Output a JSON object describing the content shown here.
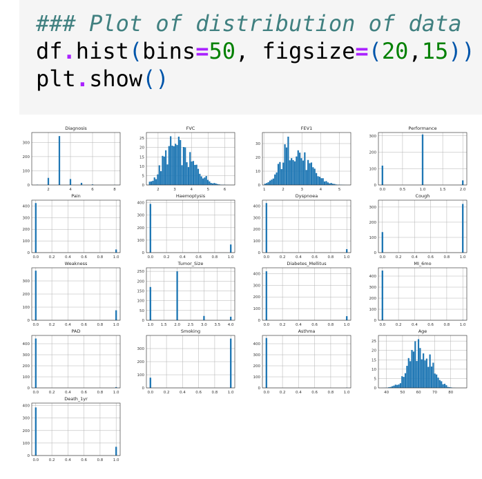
{
  "code": {
    "comment": "### Plot of distribution of data",
    "line2": {
      "obj": "df",
      "dot": ".",
      "fn": "hist",
      "open": "(",
      "arg1": "bins",
      "eq1": "=",
      "val1": "50",
      "comma1": ", ",
      "arg2": "figsize",
      "eq2": "=",
      "open2": "(",
      "val2": "20",
      "comma2": ",",
      "val3": "15",
      "close": "))"
    },
    "line3": {
      "obj": "plt",
      "dot": ".",
      "fn": "show",
      "paren": "()"
    }
  },
  "chart_data": [
    {
      "type": "bar",
      "title": "Diagnosis",
      "xticks": [
        "2",
        "4",
        "6",
        "8"
      ],
      "yticks": [
        "0",
        "100",
        "200",
        "300"
      ],
      "xlim": [
        0.5,
        8.5
      ],
      "ylim": [
        0,
        370
      ],
      "bars": [
        [
          1,
          2
        ],
        [
          2,
          50
        ],
        [
          3,
          345
        ],
        [
          4,
          42
        ],
        [
          5,
          15
        ],
        [
          6,
          4
        ],
        [
          8,
          1
        ]
      ],
      "barw": 0.14
    },
    {
      "type": "bar",
      "title": "FVC",
      "xticks": [
        "2",
        "3",
        "4",
        "5",
        "6"
      ],
      "yticks": [
        "0",
        "5",
        "10",
        "15",
        "20",
        "25"
      ],
      "xlim": [
        1.3,
        6.6
      ],
      "ylim": [
        0,
        28
      ],
      "dist": {
        "start": 1.45,
        "end": 6.3,
        "n": 50,
        "shape": "fvc",
        "max": 26
      },
      "barw": 0.09
    },
    {
      "type": "bar",
      "title": "FEV1",
      "xticks": [
        "1",
        "2",
        "3",
        "4",
        "5"
      ],
      "yticks": [
        "0",
        "10",
        "20",
        "30"
      ],
      "xlim": [
        0.9,
        5.6
      ],
      "ylim": [
        0,
        38
      ],
      "dist": {
        "start": 1.0,
        "end": 5.4,
        "n": 50,
        "shape": "fev",
        "max": 35
      },
      "barw": 0.08
    },
    {
      "type": "bar",
      "title": "Performance",
      "xticks": [
        "0.0",
        "0.5",
        "1.0",
        "1.5",
        "2.0"
      ],
      "yticks": [
        "0",
        "100",
        "200",
        "300"
      ],
      "xlim": [
        -0.1,
        2.1
      ],
      "ylim": [
        0,
        320
      ],
      "bars": [
        [
          0,
          118
        ],
        [
          1,
          308
        ],
        [
          2,
          28
        ]
      ],
      "barw": 0.04
    },
    {
      "type": "bar",
      "title": "Pain",
      "xticks": [
        "0.0",
        "0.2",
        "0.4",
        "0.6",
        "0.8",
        "1.0"
      ],
      "yticks": [
        "0",
        "100",
        "200",
        "300",
        "400"
      ],
      "xlim": [
        -0.05,
        1.05
      ],
      "ylim": [
        0,
        450
      ],
      "bars": [
        [
          0,
          425
        ],
        [
          1,
          27
        ]
      ],
      "barw": 0.02
    },
    {
      "type": "bar",
      "title": "Haemoptysis",
      "xticks": [
        "0.0",
        "0.2",
        "0.4",
        "0.6",
        "0.8",
        "1.0"
      ],
      "yticks": [
        "0",
        "100",
        "200",
        "300",
        "400"
      ],
      "xlim": [
        -0.05,
        1.05
      ],
      "ylim": [
        0,
        420
      ],
      "bars": [
        [
          0,
          390
        ],
        [
          1,
          65
        ]
      ],
      "barw": 0.02
    },
    {
      "type": "bar",
      "title": "Dyspnoea",
      "xticks": [
        "0.0",
        "0.2",
        "0.4",
        "0.6",
        "0.8",
        "1.0"
      ],
      "yticks": [
        "0",
        "100",
        "200",
        "300",
        "400"
      ],
      "xlim": [
        -0.05,
        1.05
      ],
      "ylim": [
        0,
        450
      ],
      "bars": [
        [
          0,
          425
        ],
        [
          1,
          30
        ]
      ],
      "barw": 0.02
    },
    {
      "type": "bar",
      "title": "Cough",
      "xticks": [
        "0.0",
        "0.2",
        "0.4",
        "0.6",
        "0.8",
        "1.0"
      ],
      "yticks": [
        "0",
        "100",
        "200",
        "300"
      ],
      "xlim": [
        -0.05,
        1.05
      ],
      "ylim": [
        0,
        345
      ],
      "bars": [
        [
          0,
          135
        ],
        [
          1,
          320
        ]
      ],
      "barw": 0.02
    },
    {
      "type": "bar",
      "title": "Weakness",
      "xticks": [
        "0.0",
        "0.2",
        "0.4",
        "0.6",
        "0.8",
        "1.0"
      ],
      "yticks": [
        "0",
        "100",
        "200",
        "300"
      ],
      "xlim": [
        -0.05,
        1.05
      ],
      "ylim": [
        0,
        400
      ],
      "bars": [
        [
          0,
          378
        ],
        [
          1,
          76
        ]
      ],
      "barw": 0.02
    },
    {
      "type": "bar",
      "title": "Tumor_Size",
      "xticks": [
        "1.0",
        "1.5",
        "2.0",
        "2.5",
        "3.0",
        "3.5",
        "4.0"
      ],
      "yticks": [
        "0",
        "50",
        "100",
        "150",
        "200",
        "250"
      ],
      "xlim": [
        0.85,
        4.15
      ],
      "ylim": [
        0,
        268
      ],
      "bars": [
        [
          1,
          170
        ],
        [
          2,
          250
        ],
        [
          3,
          22
        ],
        [
          4,
          18
        ]
      ],
      "barw": 0.06
    },
    {
      "type": "bar",
      "title": "Diabetes_Mellitus",
      "xticks": [
        "0.0",
        "0.2",
        "0.4",
        "0.6",
        "0.8",
        "1.0"
      ],
      "yticks": [
        "0",
        "100",
        "200",
        "300",
        "400"
      ],
      "xlim": [
        -0.05,
        1.05
      ],
      "ylim": [
        0,
        450
      ],
      "bars": [
        [
          0,
          420
        ],
        [
          1,
          35
        ]
      ],
      "barw": 0.02
    },
    {
      "type": "bar",
      "title": "MI_6mo",
      "xticks": [
        "0.0",
        "0.2",
        "0.4",
        "0.6",
        "0.8",
        "1.0"
      ],
      "yticks": [
        "0",
        "100",
        "200",
        "300",
        "400"
      ],
      "xlim": [
        -0.05,
        1.05
      ],
      "ylim": [
        0,
        475
      ],
      "bars": [
        [
          0,
          450
        ],
        [
          1,
          3
        ]
      ],
      "barw": 0.02
    },
    {
      "type": "bar",
      "title": "PAD",
      "xticks": [
        "0.0",
        "0.2",
        "0.4",
        "0.6",
        "0.8",
        "1.0"
      ],
      "yticks": [
        "0",
        "100",
        "200",
        "300",
        "400"
      ],
      "xlim": [
        -0.05,
        1.05
      ],
      "ylim": [
        0,
        475
      ],
      "bars": [
        [
          0,
          447
        ],
        [
          1,
          7
        ]
      ],
      "barw": 0.02
    },
    {
      "type": "bar",
      "title": "Smoking",
      "xticks": [
        "0.0",
        "0.2",
        "0.4",
        "0.6",
        "0.8",
        "1.0"
      ],
      "yticks": [
        "0",
        "100",
        "200",
        "300"
      ],
      "xlim": [
        -0.05,
        1.05
      ],
      "ylim": [
        0,
        400
      ],
      "bars": [
        [
          0,
          78
        ],
        [
          1,
          376
        ]
      ],
      "barw": 0.02
    },
    {
      "type": "bar",
      "title": "Asthma",
      "xticks": [
        "0.0",
        "0.2",
        "0.4",
        "0.6",
        "0.8",
        "1.0"
      ],
      "yticks": [
        "0",
        "100",
        "200",
        "300",
        "400"
      ],
      "xlim": [
        -0.05,
        1.05
      ],
      "ylim": [
        0,
        475
      ],
      "bars": [
        [
          0,
          452
        ],
        [
          1,
          2
        ]
      ],
      "barw": 0.02
    },
    {
      "type": "bar",
      "title": "Age",
      "xticks": [
        "40",
        "50",
        "60",
        "70",
        "80"
      ],
      "yticks": [
        "0",
        "5",
        "10",
        "15",
        "20",
        "25"
      ],
      "xlim": [
        35,
        90
      ],
      "ylim": [
        0,
        28
      ],
      "dist": {
        "start": 36,
        "end": 87,
        "n": 50,
        "shape": "age",
        "max": 26
      },
      "barw": 0.9
    },
    {
      "type": "bar",
      "title": "Death_1yr",
      "xticks": [
        "0.0",
        "0.2",
        "0.4",
        "0.6",
        "0.8",
        "1.0"
      ],
      "yticks": [
        "0",
        "100",
        "200",
        "300",
        "400"
      ],
      "xlim": [
        -0.05,
        1.05
      ],
      "ylim": [
        0,
        420
      ],
      "bars": [
        [
          0,
          385
        ],
        [
          1,
          70
        ]
      ],
      "barw": 0.02
    }
  ]
}
